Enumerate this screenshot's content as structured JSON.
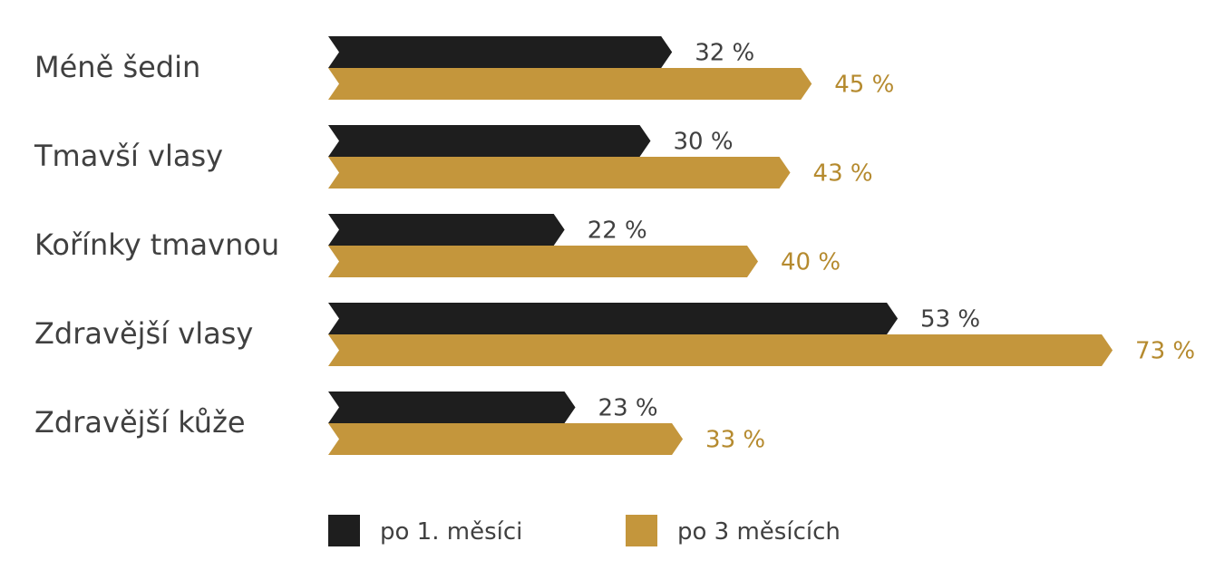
{
  "chart_data": {
    "type": "bar",
    "orientation": "horizontal",
    "categories": [
      "Méně šedin",
      "Tmavší vlasy",
      "Kořínky tmavnou",
      "Zdravější vlasy",
      "Zdravější kůže"
    ],
    "series": [
      {
        "name": "po 1. měsíci",
        "color": "#1e1e1e",
        "label_color": "#404040",
        "values": [
          32,
          30,
          22,
          53,
          23
        ],
        "labels": [
          "32 %",
          "30 %",
          "22 %",
          "53 %",
          "23 %"
        ]
      },
      {
        "name": "po 3 měsících",
        "color": "#c4963c",
        "label_color": "#b58a2e",
        "values": [
          45,
          43,
          40,
          73,
          33
        ],
        "labels": [
          "45 %",
          "43 %",
          "40 %",
          "73 %",
          "33 %"
        ]
      }
    ],
    "xlim": [
      0,
      73
    ],
    "grid": false,
    "legend_position": "bottom"
  }
}
